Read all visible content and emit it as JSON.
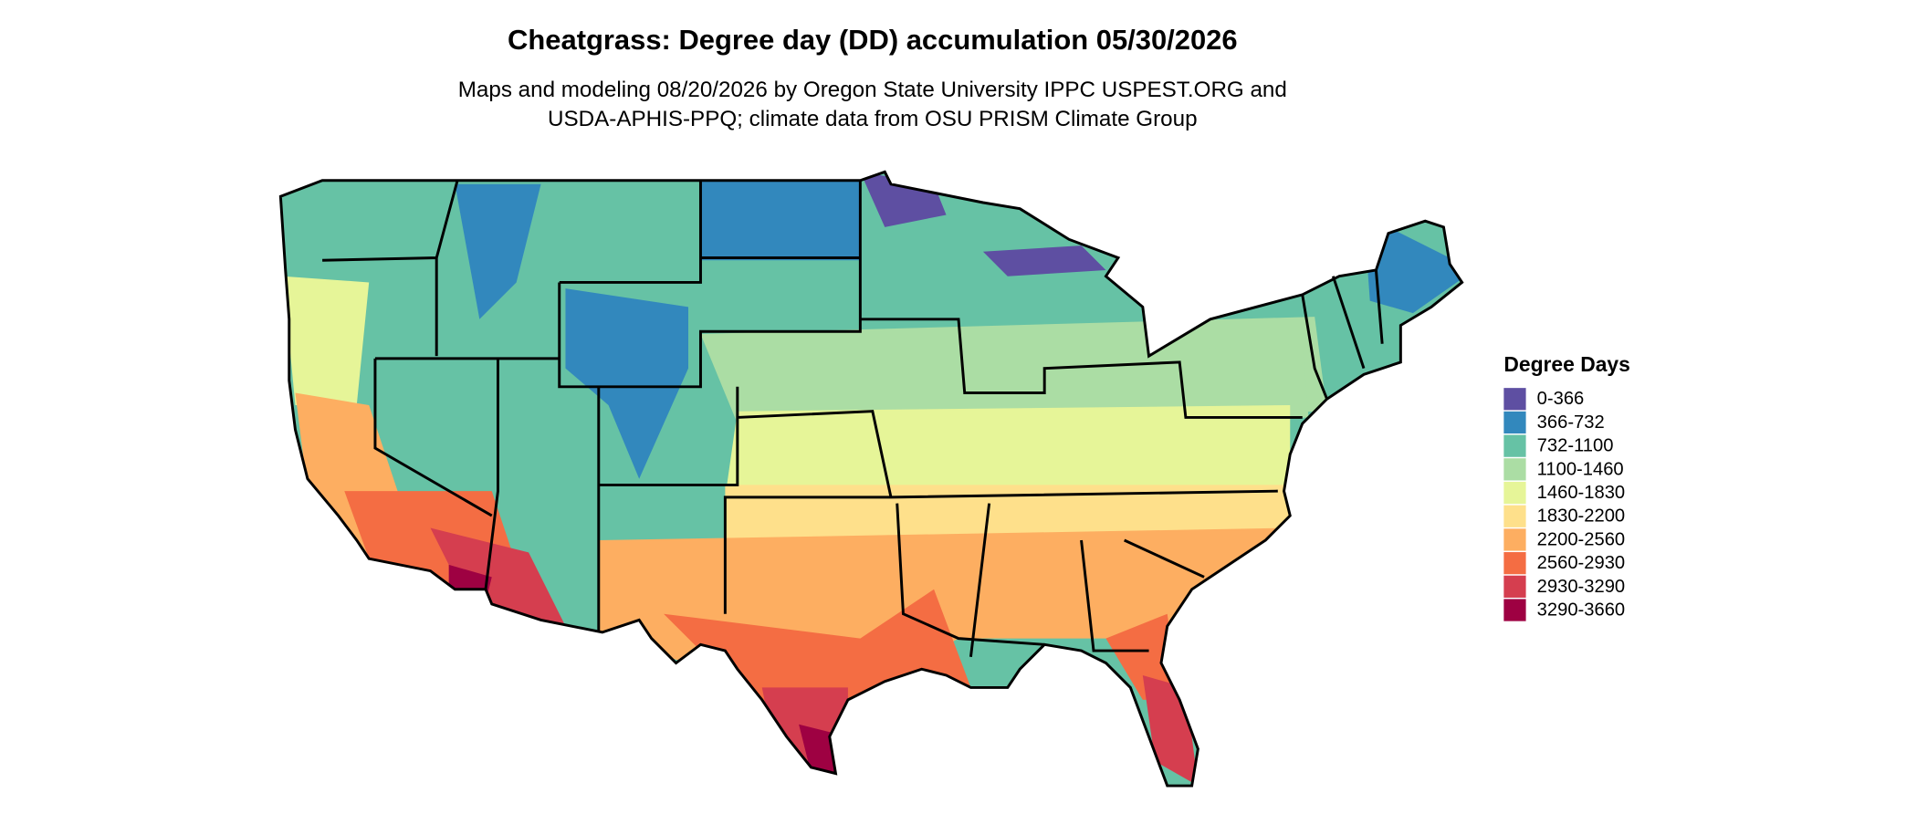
{
  "title": "Cheatgrass: Degree day (DD) accumulation 05/30/2026",
  "subtitle": [
    "Maps and modeling 08/20/2026 by Oregon State University IPPC USPEST.ORG and",
    "USDA-APHIS-PPQ; climate data from OSU PRISM Climate Group"
  ],
  "legend": {
    "title": "Degree Days",
    "items": [
      {
        "label": "0-366",
        "color": "#5e4fa2"
      },
      {
        "label": "366-732",
        "color": "#3288bd"
      },
      {
        "label": "732-1100",
        "color": "#66c2a5"
      },
      {
        "label": "1100-1460",
        "color": "#abdda4"
      },
      {
        "label": "1460-1830",
        "color": "#e6f598"
      },
      {
        "label": "1830-2200",
        "color": "#fee08b"
      },
      {
        "label": "2200-2560",
        "color": "#fdae61"
      },
      {
        "label": "2560-2930",
        "color": "#f46d43"
      },
      {
        "label": "2930-3290",
        "color": "#d53e4f"
      },
      {
        "label": "3290-3660",
        "color": "#9e0142"
      }
    ]
  }
}
